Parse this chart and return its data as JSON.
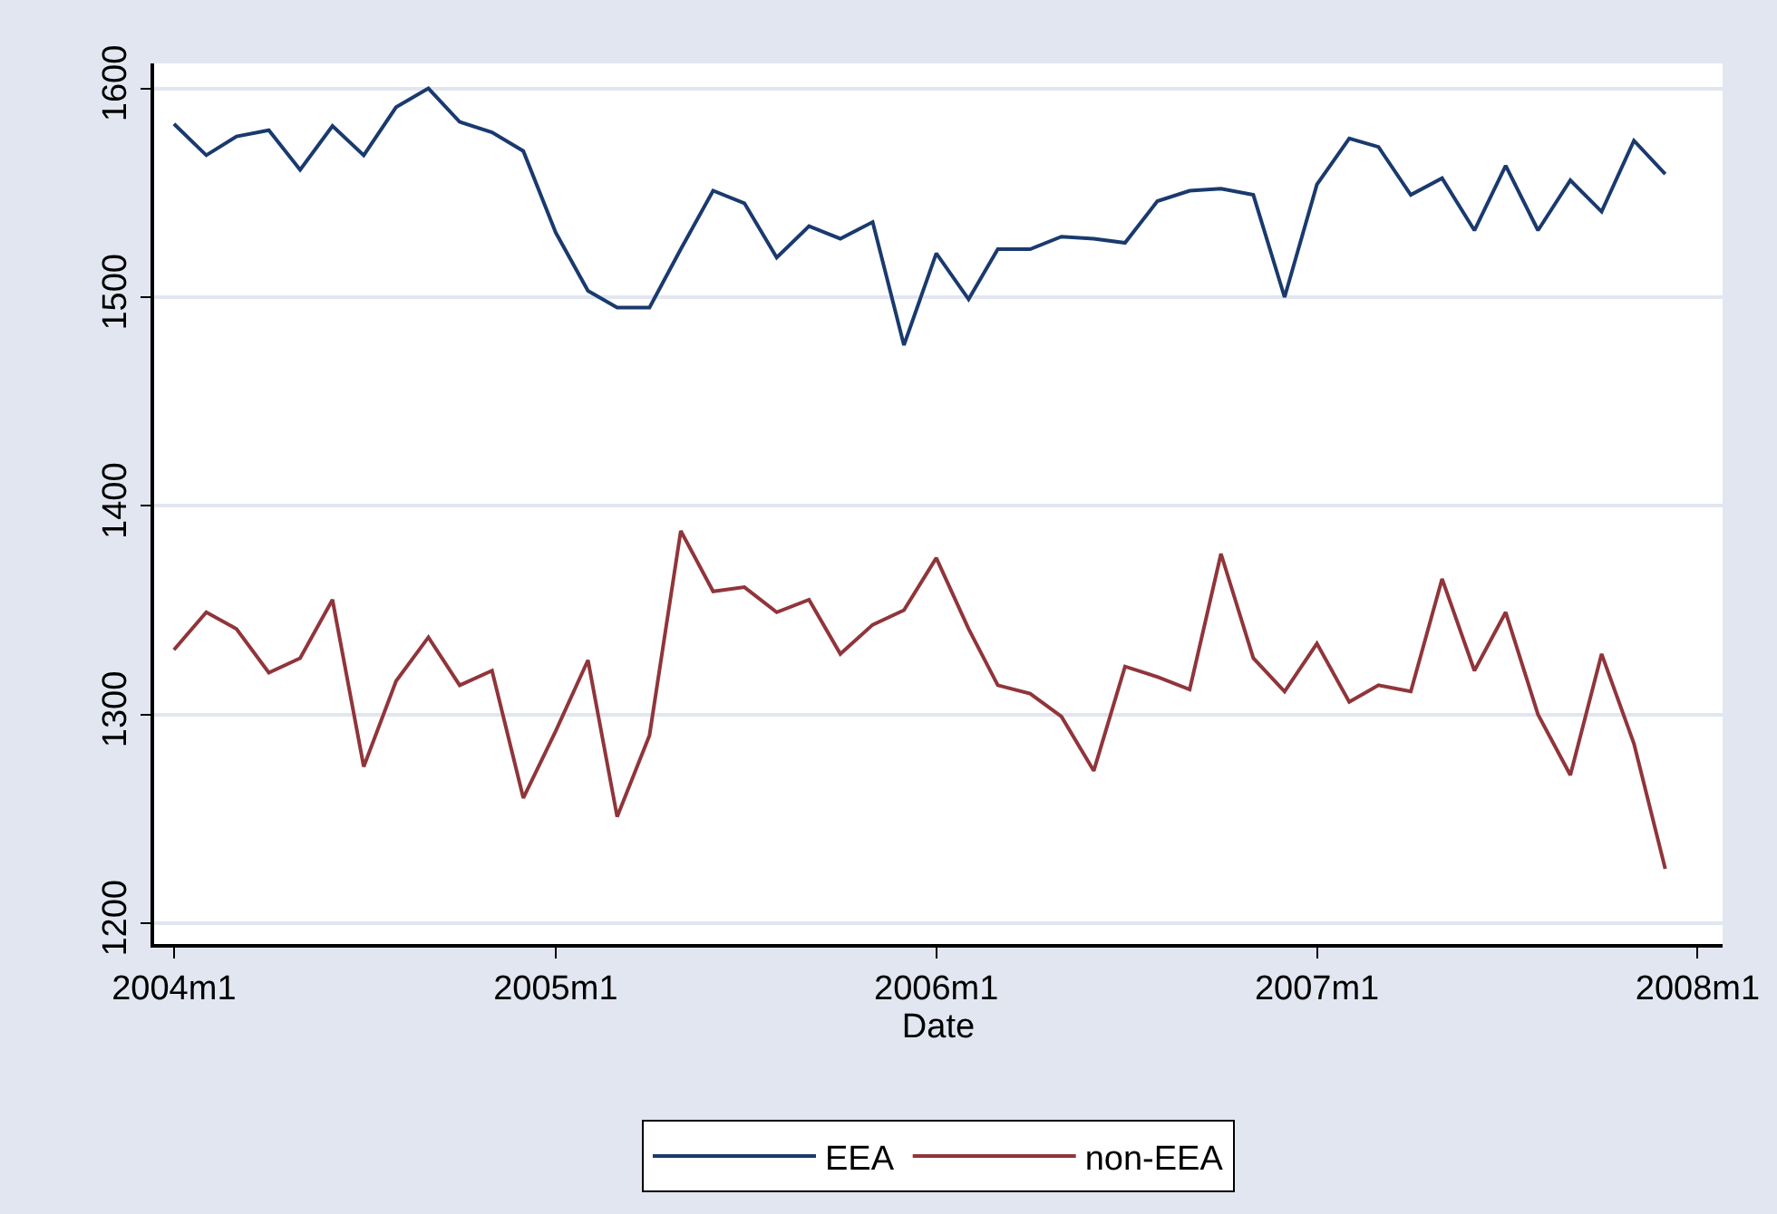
{
  "chart_data": {
    "type": "line",
    "xlabel": "Date",
    "x": [
      "2004-01",
      "2004-02",
      "2004-03",
      "2004-04",
      "2004-05",
      "2004-06",
      "2004-07",
      "2004-08",
      "2004-09",
      "2004-10",
      "2004-11",
      "2004-12",
      "2005-01",
      "2005-02",
      "2005-03",
      "2005-04",
      "2005-05",
      "2005-06",
      "2005-07",
      "2005-08",
      "2005-09",
      "2005-10",
      "2005-11",
      "2005-12",
      "2006-01",
      "2006-02",
      "2006-03",
      "2006-04",
      "2006-05",
      "2006-06",
      "2006-07",
      "2006-08",
      "2006-09",
      "2006-10",
      "2006-11",
      "2006-12",
      "2007-01",
      "2007-02",
      "2007-03",
      "2007-04",
      "2007-05",
      "2007-06",
      "2007-07",
      "2007-08",
      "2007-09",
      "2007-10",
      "2007-11",
      "2007-12"
    ],
    "series": [
      {
        "name": "EEA",
        "color": "#1a3a6e",
        "values": [
          1583,
          1568,
          1577,
          1580,
          1561,
          1582,
          1568,
          1591,
          1600,
          1584,
          1579,
          1570,
          1531,
          1503,
          1495,
          1495,
          1523,
          1551,
          1545,
          1519,
          1534,
          1528,
          1536,
          1477,
          1521,
          1499,
          1523,
          1523,
          1529,
          1528,
          1526,
          1546,
          1551,
          1552,
          1549,
          1500,
          1554,
          1576,
          1572,
          1549,
          1557,
          1532,
          1563,
          1532,
          1556,
          1541,
          1575,
          1559
        ]
      },
      {
        "name": "non-EEA",
        "color": "#90353b",
        "values": [
          1331,
          1349,
          1341,
          1320,
          1327,
          1355,
          1275,
          1316,
          1337,
          1314,
          1321,
          1260,
          1292,
          1326,
          1251,
          1290,
          1388,
          1359,
          1361,
          1349,
          1355,
          1329,
          1343,
          1350,
          1375,
          1341,
          1314,
          1310,
          1299,
          1273,
          1323,
          1318,
          1312,
          1377,
          1327,
          1311,
          1334,
          1306,
          1314,
          1311,
          1365,
          1321,
          1349,
          1300,
          1271,
          1329,
          1286,
          1226
        ]
      }
    ],
    "xlim": [
      "2003-12-13",
      "2008-01-25"
    ],
    "xticks": [
      {
        "value": "2004-01",
        "label": "2004m1"
      },
      {
        "value": "2005-01",
        "label": "2005m1"
      },
      {
        "value": "2006-01",
        "label": "2006m1"
      },
      {
        "value": "2007-01",
        "label": "2007m1"
      },
      {
        "value": "2008-01",
        "label": "2008m1"
      }
    ],
    "ylim": [
      1190,
      1612
    ],
    "yticks": [
      1200,
      1300,
      1400,
      1500,
      1600
    ],
    "grid": "y",
    "legend": "bottom",
    "line_style": "solid",
    "marker": "none"
  }
}
